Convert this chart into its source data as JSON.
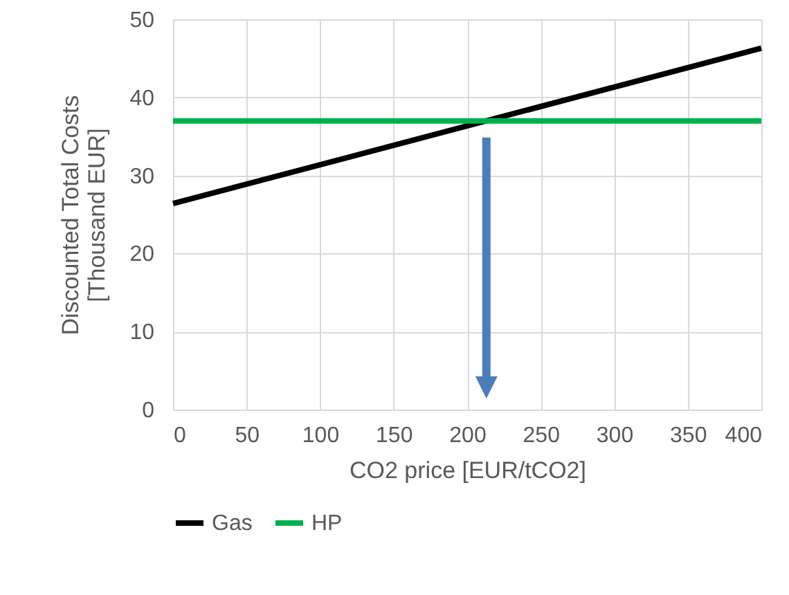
{
  "chart_data": {
    "type": "line",
    "xlabel": "CO2 price [EUR/tCO2]",
    "ylabel": "Discounted Total Costs [Thousand EUR]",
    "x": [
      0,
      400
    ],
    "series": [
      {
        "name": "Gas",
        "color": "#000000",
        "values": [
          26.4,
          46.3
        ]
      },
      {
        "name": "HP",
        "color": "#00b050",
        "values": [
          37,
          37
        ]
      }
    ],
    "xlim": [
      0,
      400
    ],
    "xticks": [
      0,
      50,
      100,
      150,
      200,
      250,
      300,
      350,
      400
    ],
    "ylim": [
      0,
      50
    ],
    "yticks": [
      0,
      10,
      20,
      30,
      40,
      50
    ],
    "grid": true,
    "legend": "bottom"
  }
}
